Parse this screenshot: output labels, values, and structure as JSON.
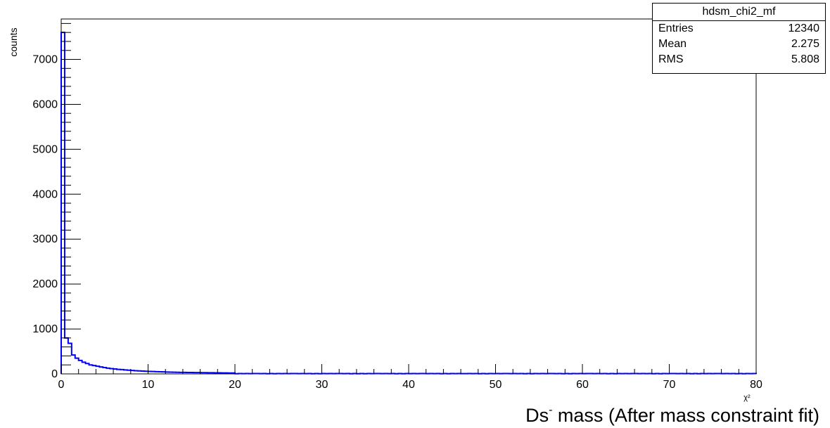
{
  "chart_data": {
    "type": "bar",
    "histogram": true,
    "ylabel": "counts",
    "xlabel_main": "Ds",
    "xlabel_sup": "-",
    "xlabel_rest": " mass (After mass constraint fit)",
    "xlabel_unit": "χ²",
    "xlim": [
      0,
      80
    ],
    "ylim": [
      0,
      7900
    ],
    "x_ticks": [
      0,
      10,
      20,
      30,
      40,
      50,
      60,
      70,
      80
    ],
    "y_ticks": [
      0,
      1000,
      2000,
      3000,
      4000,
      5000,
      6000,
      7000
    ],
    "bin_width": 0.4,
    "values": [
      7600,
      800,
      680,
      420,
      350,
      300,
      260,
      230,
      200,
      185,
      170,
      155,
      140,
      128,
      118,
      110,
      100,
      95,
      88,
      82,
      76,
      70,
      66,
      62,
      58,
      55,
      52,
      49,
      46,
      44,
      42,
      40,
      38,
      36,
      34,
      33,
      32,
      31,
      30,
      29,
      28,
      27,
      26,
      25,
      24,
      23,
      22,
      21,
      20,
      20
    ],
    "tail_value": 6,
    "color": "#0000ff",
    "stats": {
      "title": "hdsm_chi2_mf",
      "entries_label": "Entries",
      "entries_value": "12340",
      "mean_label": "Mean",
      "mean_value": "2.275",
      "rms_label": "RMS",
      "rms_value": "5.808"
    }
  }
}
